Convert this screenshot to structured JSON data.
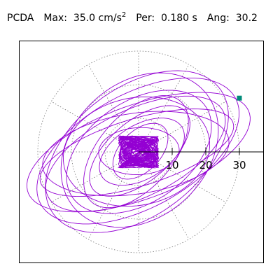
{
  "header": {
    "label": "PCDA",
    "max_label": "Max:",
    "max_value": "35.0 cm/s",
    "max_superscript": "2",
    "per_label": "Per:",
    "per_value": "0.180 s",
    "ang_label": "Ang:",
    "ang_value": "30.2"
  },
  "plot": {
    "axis_ticks": [
      "10",
      "20",
      "30"
    ],
    "colors": {
      "trace": "#9400d3",
      "marker": "#008b7a",
      "grid": "#777777",
      "axis": "#000000"
    }
  },
  "chart_data": {
    "type": "scatter",
    "title": "",
    "xlabel": "",
    "ylabel": "",
    "polar": true,
    "radial_ticks": [
      10,
      20,
      30
    ],
    "radial_max": 35.0,
    "grid": "dotted polar (rings every 10, spokes every 30 degrees)",
    "series": [
      {
        "marker_point": {
          "x": 30.0,
          "y": 16.0
        }
      }
    ]
  }
}
